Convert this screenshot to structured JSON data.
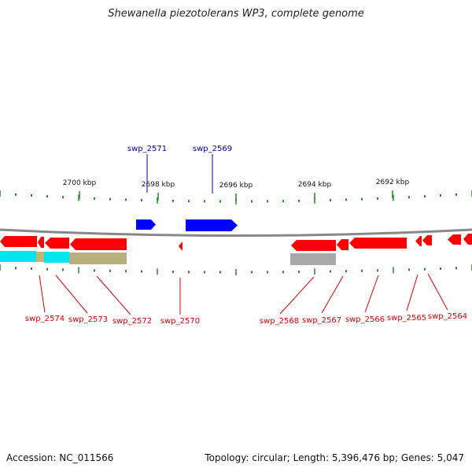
{
  "title": "Shewanella piezotolerans WP3, complete genome",
  "footer": {
    "accession": "Accession: NC_011566",
    "summary": "Topology: circular; Length: 5,396,476 bp; Genes: 5,047"
  },
  "colors": {
    "forward_gene": "#0000ff",
    "reverse_gene": "#ff0000",
    "tick": "#228b22",
    "backbone": "#888888",
    "forward_label": "#0000aa",
    "reverse_label": "#dd0000"
  },
  "scale_labels": [
    "2700 kbp",
    "2698 kbp",
    "2696 kbp",
    "2694 kbp",
    "2692 kbp"
  ],
  "forward_genes": [
    {
      "name": "swp_2571"
    },
    {
      "name": "swp_2569"
    }
  ],
  "reverse_genes": [
    {
      "name": "swp_2574"
    },
    {
      "name": "swp_2573"
    },
    {
      "name": "swp_2572"
    },
    {
      "name": "swp_2570"
    },
    {
      "name": "swp_2568"
    },
    {
      "name": "swp_2567"
    },
    {
      "name": "swp_2566"
    },
    {
      "name": "swp_2565"
    },
    {
      "name": "swp_2564"
    }
  ],
  "feature_track_colors": [
    "#00e5ee",
    "#c8b46e",
    "#c8c8a0",
    "#a0a0a0"
  ]
}
